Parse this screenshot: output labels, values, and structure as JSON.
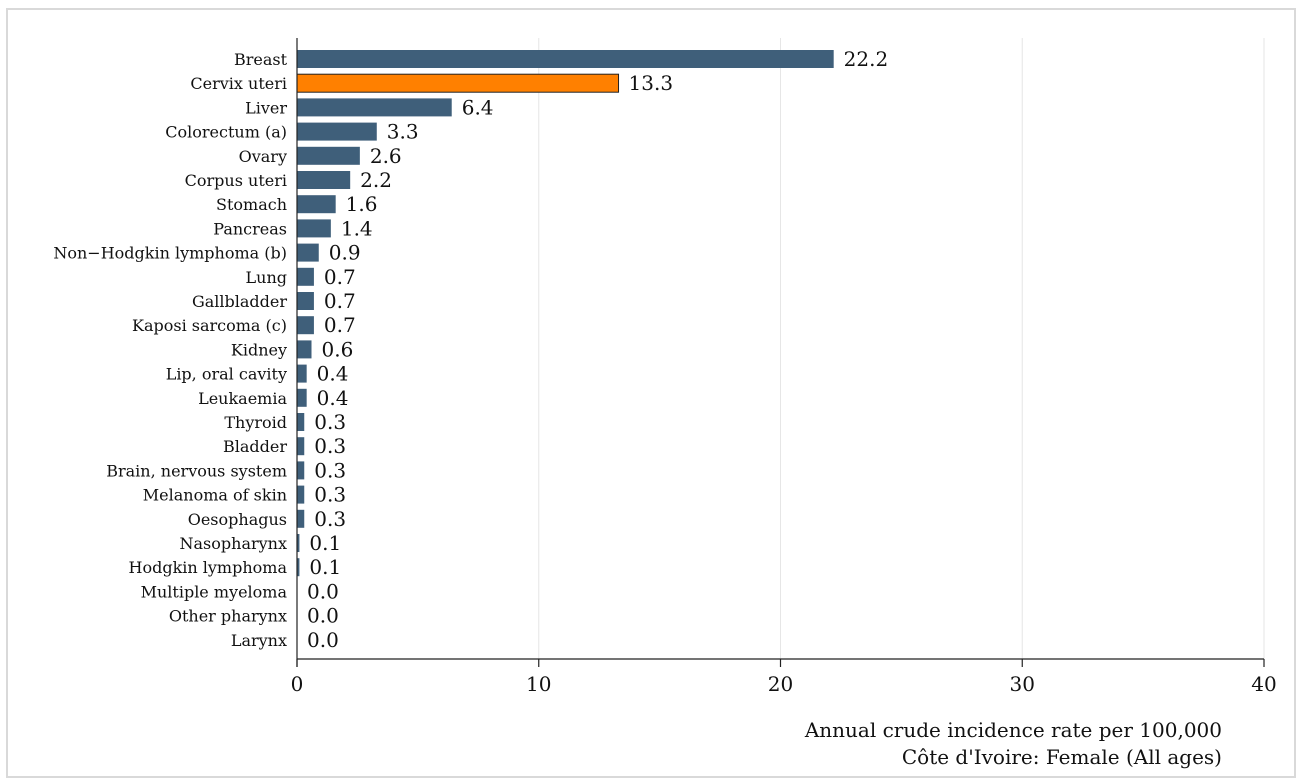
{
  "chart_data": {
    "type": "bar",
    "orientation": "horizontal",
    "categories": [
      "Breast",
      "Cervix uteri",
      "Liver",
      "Colorectum (a)",
      "Ovary",
      "Corpus uteri",
      "Stomach",
      "Pancreas",
      "Non−Hodgkin lymphoma (b)",
      "Lung",
      "Gallbladder",
      "Kaposi sarcoma (c)",
      "Kidney",
      "Lip, oral cavity",
      "Leukaemia",
      "Thyroid",
      "Bladder",
      "Brain, nervous system",
      "Melanoma of skin",
      "Oesophagus",
      "Nasopharynx",
      "Hodgkin lymphoma",
      "Multiple myeloma",
      "Other pharynx",
      "Larynx"
    ],
    "values": [
      22.2,
      13.3,
      6.4,
      3.3,
      2.6,
      2.2,
      1.6,
      1.4,
      0.9,
      0.7,
      0.7,
      0.7,
      0.6,
      0.4,
      0.4,
      0.3,
      0.3,
      0.3,
      0.3,
      0.3,
      0.1,
      0.1,
      0.0,
      0.0,
      0.0
    ],
    "value_labels": [
      "22.2",
      "13.3",
      "6.4",
      "3.3",
      "2.6",
      "2.2",
      "1.6",
      "1.4",
      "0.9",
      "0.7",
      "0.7",
      "0.7",
      "0.6",
      "0.4",
      "0.4",
      "0.3",
      "0.3",
      "0.3",
      "0.3",
      "0.3",
      "0.1",
      "0.1",
      "0.0",
      "0.0",
      "0.0"
    ],
    "highlight_index": 1,
    "colors": {
      "bar": "#3f5f7a",
      "highlight": "#ff8000",
      "grid": "#e6e6e6"
    },
    "xlim": [
      0,
      40
    ],
    "xticks": [
      "0",
      "10",
      "20",
      "30",
      "40"
    ],
    "xlabel": "Annual crude incidence rate per 100,000",
    "subtitle": "Côte d'Ivoire: Female  (All ages)",
    "grid": true
  }
}
